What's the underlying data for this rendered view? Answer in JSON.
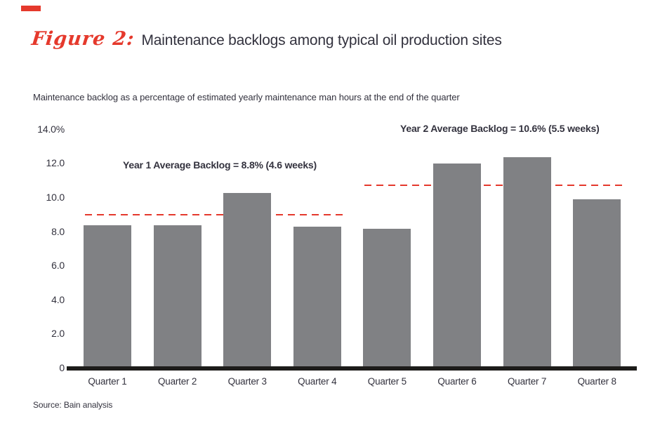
{
  "page": {
    "title_script": "Figure 2:",
    "title_text": "Maintenance backlogs among typical oil production sites",
    "subtitle": "Maintenance backlog as a percentage of estimated yearly maintenance man hours at the end of the quarter",
    "source": "Source: Bain analysis",
    "accent_color": "#e5392c",
    "text_color": "#33323e"
  },
  "chart_data": {
    "type": "bar",
    "title": "Maintenance backlogs among typical oil production sites",
    "xlabel": "",
    "ylabel": "Maintenance backlog as a percentage of estimated yearly maintenance man hours at the end of the quarter",
    "categories": [
      "Quarter 1",
      "Quarter 2",
      "Quarter 3",
      "Quarter 4",
      "Quarter 5",
      "Quarter 6",
      "Quarter 7",
      "Quarter 8"
    ],
    "values": [
      8.4,
      8.4,
      10.3,
      8.3,
      8.2,
      12.0,
      12.4,
      9.9
    ],
    "bar_color": "#808184",
    "ylim": [
      0,
      14
    ],
    "yticks": [
      {
        "label": "14.0%",
        "value": 14.0
      },
      {
        "label": "12.0",
        "value": 12.0
      },
      {
        "label": "10.0",
        "value": 10.0
      },
      {
        "label": "8.0",
        "value": 8.0
      },
      {
        "label": "6.0",
        "value": 6.0
      },
      {
        "label": "4.0",
        "value": 4.0
      },
      {
        "label": "2.0",
        "value": 2.0
      },
      {
        "label": "0",
        "value": 0
      }
    ],
    "grid": false,
    "legend": false,
    "avg_lines": [
      {
        "label": "Year 1 Average Backlog = 8.8% (4.6 weeks)",
        "value": 8.8,
        "line_value": 9.0,
        "from": 0,
        "to": 3,
        "color": "#e5392c"
      },
      {
        "label": "Year 2 Average Backlog = 10.6% (5.5 weeks)",
        "value": 10.6,
        "line_value": 10.73,
        "from": 4,
        "to": 7,
        "color": "#e5392c"
      }
    ]
  }
}
